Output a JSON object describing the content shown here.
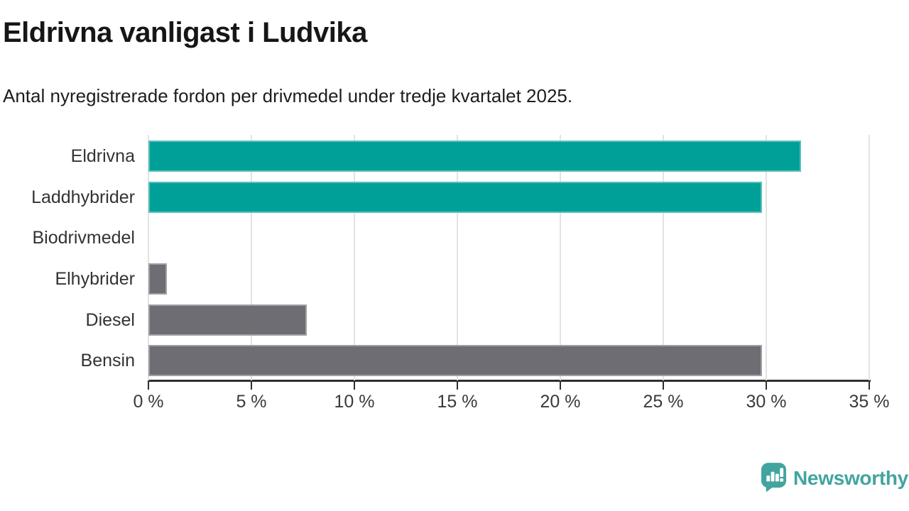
{
  "chart_data": {
    "type": "bar",
    "orientation": "horizontal",
    "title": "Eldrivna vanligast i Ludvika",
    "subtitle": "Antal nyregistrerade fordon per drivmedel under tredje kvartalet 2025.",
    "categories": [
      "Eldrivna",
      "Laddhybrider",
      "Biodrivmedel",
      "Elhybrider",
      "Diesel",
      "Bensin"
    ],
    "values": [
      31.7,
      29.8,
      0,
      0.9,
      7.7,
      29.8
    ],
    "unit": "%",
    "bar_colors": [
      "#00a099",
      "#00a099",
      "#00a099",
      "#6e6d73",
      "#6e6d73",
      "#6e6d73"
    ],
    "xlim": [
      0,
      35
    ],
    "x_ticks": [
      0,
      5,
      10,
      15,
      20,
      25,
      30,
      35
    ],
    "x_tick_labels": [
      "0 %",
      "5 %",
      "10 %",
      "15 %",
      "20 %",
      "25 %",
      "30 %",
      "35 %"
    ],
    "grid": true,
    "legend": false
  },
  "branding": {
    "logo_text": "Newsworthy",
    "logo_icon": "newsworthy-speech-bubble-barchart-icon"
  },
  "colors": {
    "accent_teal": "#00a099",
    "bar_gray": "#6e6d73",
    "grid": "#e3e3e3",
    "axis": "#2f2f2f",
    "text": "#1d1d1d",
    "text_strong": "#161616",
    "logo": "#42a49f"
  }
}
